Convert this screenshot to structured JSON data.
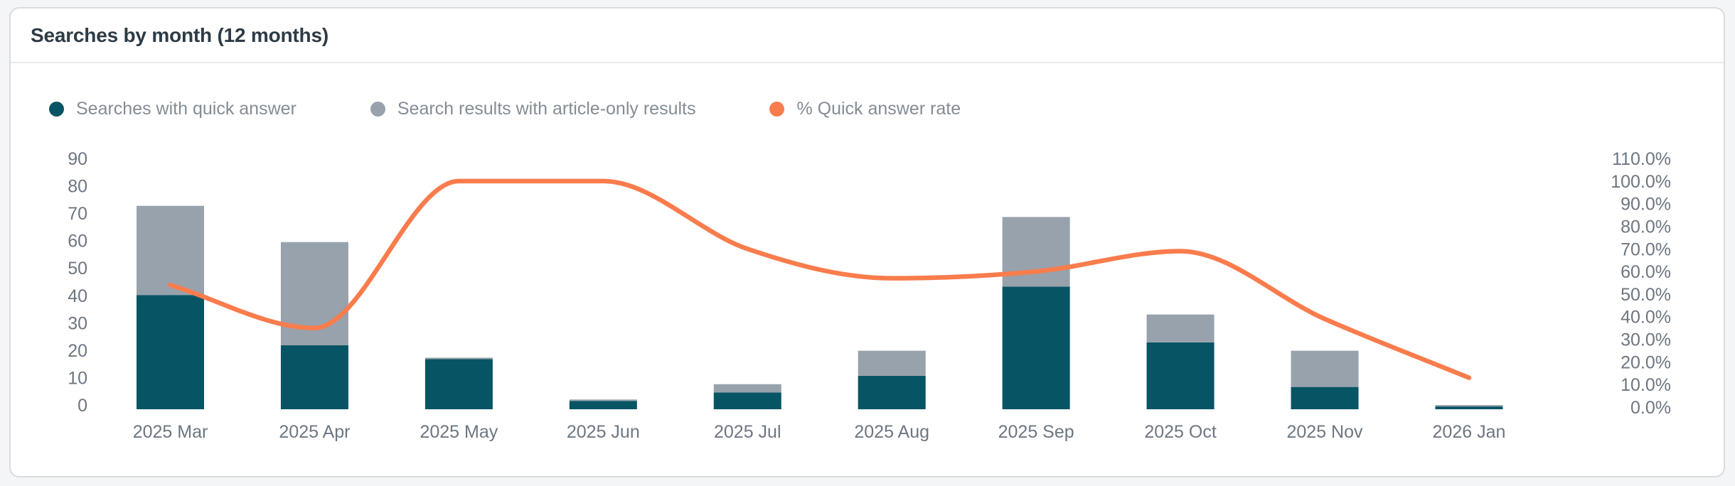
{
  "card": {
    "title": "Searches by month (12 months)"
  },
  "legend": [
    {
      "label": "Searches with quick answer",
      "color": "#075465"
    },
    {
      "label": "Search results with article-only results",
      "color": "#98a2ac"
    },
    {
      "label": "% Quick answer rate",
      "color": "#f97c4c"
    }
  ],
  "colors": {
    "bar_quick_answer": "#075465",
    "bar_article_only": "#98a2ac",
    "rate_line": "#f97c4c",
    "card_background": "#ffffff",
    "page_background": "#f4f5f6",
    "card_border": "#d9dcdf",
    "title_text": "#2d3b45",
    "axis_text": "#6d7680",
    "legend_text": "#848c94"
  },
  "chart_data": {
    "type": "bar",
    "subtype": "stacked-bars-with-line-dual-axis",
    "title": "Searches by month (12 months)",
    "categories": [
      "2025 Mar",
      "2025 Apr",
      "2025 May",
      "2025 Jun",
      "2025 Jul",
      "2025 Aug",
      "2025 Sep",
      "2025 Oct",
      "2025 Nov",
      "2026 Jan"
    ],
    "series": [
      {
        "name": "Searches with quick answer",
        "type": "bar",
        "stack": "searches",
        "color": "#075465",
        "values": [
          41,
          23,
          18,
          3,
          6,
          12,
          44,
          24,
          8,
          1
        ]
      },
      {
        "name": "Search results with article-only results",
        "type": "bar",
        "stack": "searches",
        "color": "#98a2ac",
        "values": [
          32,
          37,
          0,
          0,
          3,
          9,
          25,
          10,
          13,
          0
        ]
      },
      {
        "name": "% Quick answer rate",
        "type": "line",
        "axis": "right",
        "color": "#f97c4c",
        "unit": "%",
        "values": [
          54,
          35,
          100,
          100,
          70,
          57,
          60,
          69,
          39,
          13
        ]
      }
    ],
    "left_axis": {
      "min": 0,
      "max": 90,
      "step": 10
    },
    "right_axis": {
      "min": 0,
      "max": 110,
      "step": 10,
      "format": "percent-1dp"
    },
    "legend_position": "top-left",
    "grid": false
  }
}
